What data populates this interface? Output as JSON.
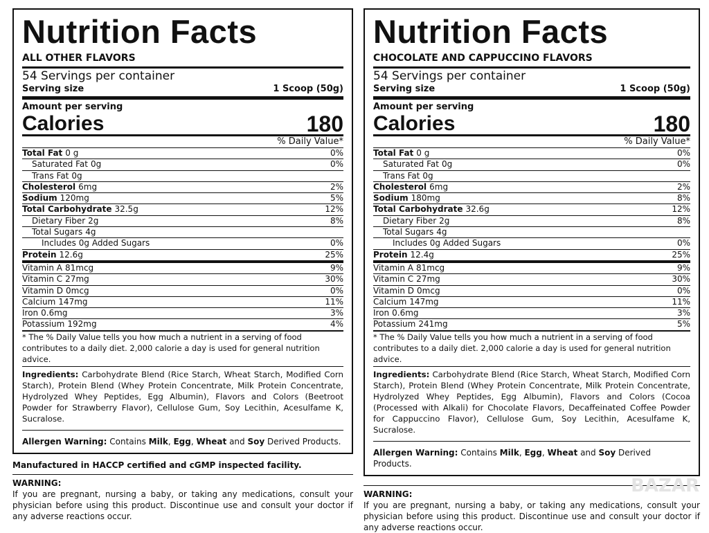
{
  "watermark": "BAZAR",
  "panels": [
    {
      "title": "Nutrition Facts",
      "flavor": "ALL OTHER FLAVORS",
      "servings": "54 Servings per container",
      "serving_size_label": "Serving size",
      "serving_size": "1 Scoop (50g)",
      "amount_label": "Amount per serving",
      "calories_label": "Calories",
      "calories": 180,
      "dv_header": "% Daily Value*",
      "nutrients": [
        {
          "name": "Total Fat",
          "amount": "0 g",
          "dv": "0%",
          "sub": [
            {
              "name": "Saturated Fat",
              "amount": "0g",
              "dv": "0%"
            },
            {
              "name": "Trans Fat",
              "amount": "0g"
            }
          ]
        },
        {
          "name": "Cholesterol",
          "amount": "6mg",
          "dv": "2%"
        },
        {
          "name": "Sodium",
          "amount": "120mg",
          "dv": "5%"
        },
        {
          "name": "Total Carbohydrate",
          "amount": "32.5g",
          "dv": "12%",
          "sub": [
            {
              "name": "Dietary Fiber",
              "amount": "2g",
              "dv": "8%"
            },
            {
              "name": "Total Sugars",
              "amount": "4g",
              "sub": [
                {
                  "name": "Includes 0g Added Sugars",
                  "amount": "",
                  "dv": "0%"
                }
              ]
            }
          ]
        },
        {
          "name": "Protein",
          "amount": "12.6g",
          "dv": "25%"
        }
      ],
      "vitamins": [
        {
          "name": "Vitamin A",
          "amount": "81mcg",
          "dv": "9%"
        },
        {
          "name": "Vitamin C",
          "amount": "27mg",
          "dv": "30%"
        },
        {
          "name": "Vitamin D",
          "amount": "0mcg",
          "dv": "0%"
        },
        {
          "name": "Calcium",
          "amount": "147mg",
          "dv": "11%"
        },
        {
          "name": "Iron",
          "amount": "0.6mg",
          "dv": "3%"
        },
        {
          "name": "Potassium",
          "amount": "192mg",
          "dv": "4%"
        }
      ],
      "footnote": "* The % Daily Value tells you how much a nutrient in a serving of food contributes to a daily diet. 2,000 calorie a day is used for general nutrition advice.",
      "ingredients_label": "Ingredients:",
      "ingredients": "Carbohydrate Blend (Rice Starch, Wheat Starch, Modified Corn Starch), Protein Blend (Whey Protein Concentrate, Milk Protein Concentrate, Hydrolyzed Whey Peptides, Egg Albumin), Flavors and Colors (Beetroot Powder for Strawberry Flavor), Cellulose Gum, Soy Lecithin, Acesulfame K, Sucralose.",
      "allergen_label": "Allergen Warning:",
      "allergen": [
        "Contains ",
        "Milk",
        ", ",
        "Egg",
        ", ",
        "Wheat",
        " and ",
        "Soy",
        " Derived Products."
      ],
      "manufactured": "Manufactured in HACCP certified and cGMP inspected facility.",
      "warning_label": "WARNING:",
      "warning": "If you are pregnant, nursing a baby, or taking any medications, consult your physician before using this product. Discontinue use and consult your doctor if any adverse reactions occur."
    },
    {
      "title": "Nutrition Facts",
      "flavor": "CHOCOLATE AND CAPPUCCINO FLAVORS",
      "servings": "54 Servings per container",
      "serving_size_label": "Serving size",
      "serving_size": "1 Scoop (50g)",
      "amount_label": "Amount per serving",
      "calories_label": "Calories",
      "calories": 180,
      "dv_header": "% Daily Value*",
      "nutrients": [
        {
          "name": "Total Fat",
          "amount": "0 g",
          "dv": "0%",
          "sub": [
            {
              "name": "Saturated Fat",
              "amount": "0g",
              "dv": "0%"
            },
            {
              "name": "Trans Fat",
              "amount": "0g"
            }
          ]
        },
        {
          "name": "Cholesterol",
          "amount": "6mg",
          "dv": "2%"
        },
        {
          "name": "Sodium",
          "amount": "180mg",
          "dv": "8%"
        },
        {
          "name": "Total Carbohydrate",
          "amount": "32.6g",
          "dv": "12%",
          "sub": [
            {
              "name": "Dietary Fiber",
              "amount": "2g",
              "dv": "8%"
            },
            {
              "name": "Total Sugars",
              "amount": "4g",
              "sub": [
                {
                  "name": "Includes 0g Added Sugars",
                  "amount": "",
                  "dv": "0%"
                }
              ]
            }
          ]
        },
        {
          "name": "Protein",
          "amount": "12.4g",
          "dv": "25%"
        }
      ],
      "vitamins": [
        {
          "name": "Vitamin A",
          "amount": "81mcg",
          "dv": "9%"
        },
        {
          "name": "Vitamin C",
          "amount": "27mg",
          "dv": "30%"
        },
        {
          "name": "Vitamin D",
          "amount": "0mcg",
          "dv": "0%"
        },
        {
          "name": "Calcium",
          "amount": "147mg",
          "dv": "11%"
        },
        {
          "name": "Iron",
          "amount": "0.6mg",
          "dv": "3%"
        },
        {
          "name": "Potassium",
          "amount": "241mg",
          "dv": "5%"
        }
      ],
      "footnote": "* The % Daily Value tells you how much a nutrient in a serving of food contributes to a daily diet. 2,000 calorie a day is used for general nutrition advice.",
      "ingredients_label": "Ingredients:",
      "ingredients": "Carbohydrate Blend (Rice Starch, Wheat Starch, Modified Corn Starch), Protein Blend (Whey Protein Concentrate, Milk Protein Concentrate, Hydrolyzed Whey Peptides, Egg Albumin), Flavors and Colors (Cocoa (Processed with Alkali) for Chocolate Flavors, Decaffeinated Coffee Powder for Cappuccino Flavor), Cellulose Gum, Soy Lecithin, Acesulfame K, Sucralose.",
      "allergen_label": "Allergen Warning:",
      "allergen": [
        "Contains ",
        "Milk",
        ", ",
        "Egg",
        ", ",
        "Wheat",
        " and ",
        "Soy",
        " Derived Products."
      ],
      "warning_label": "WARNING:",
      "warning": "If you are pregnant, nursing a baby, or taking any medications, consult your physician before using this product. Discontinue use and consult your doctor if any adverse reactions occur."
    }
  ]
}
